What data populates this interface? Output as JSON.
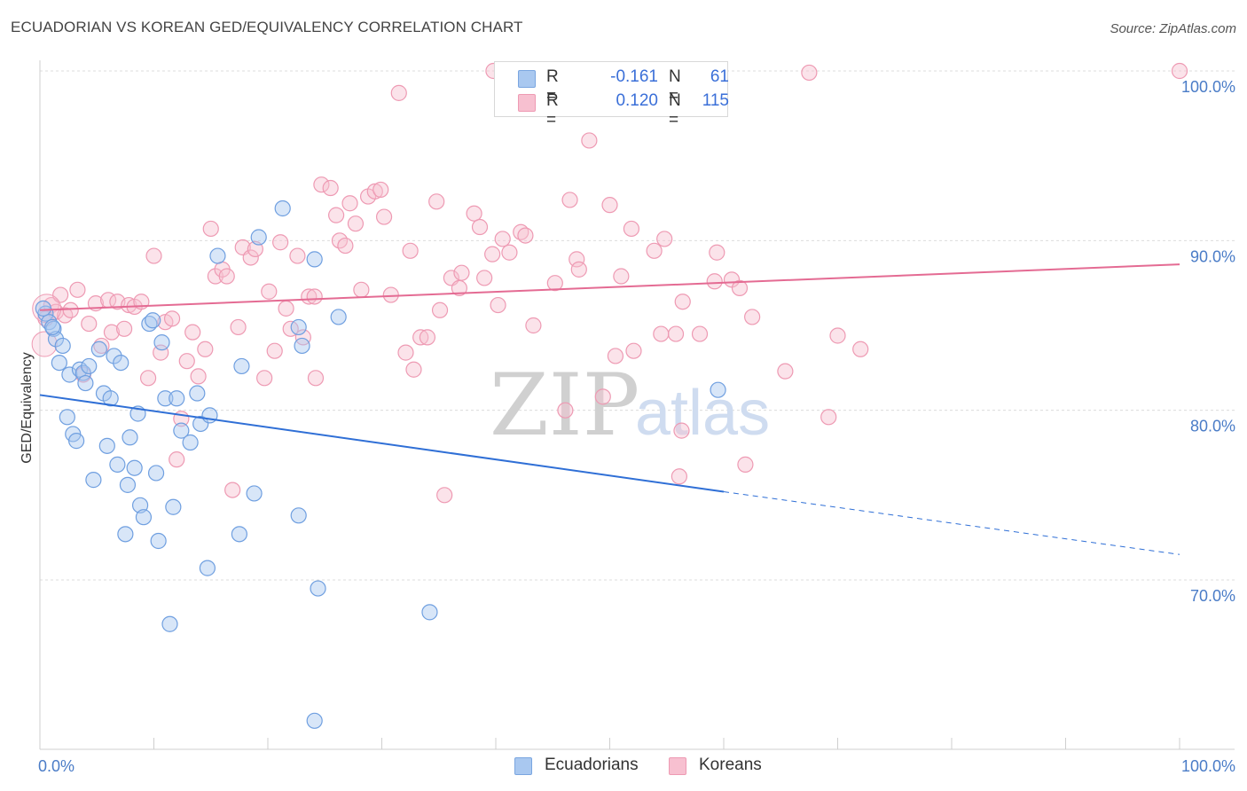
{
  "title": "ECUADORIAN VS KOREAN GED/EQUIVALENCY CORRELATION CHART",
  "source": "Source: ZipAtlas.com",
  "watermark": {
    "zip": "ZIP",
    "atlas": "atlas"
  },
  "legend": {
    "rows": [
      {
        "r_label": "R =",
        "r_value": "-0.161",
        "n_label": "N =",
        "n_value": "61",
        "color": "#a9c8f0",
        "border": "#7aa6e0"
      },
      {
        "r_label": "R =",
        "r_value": "0.120",
        "n_label": "N =",
        "n_value": "115",
        "color": "#f7c0d0",
        "border": "#ee9ab3"
      }
    ]
  },
  "bottom_legend": [
    {
      "label": "Ecuadorians",
      "color": "#a9c8f0",
      "border": "#7aa6e0"
    },
    {
      "label": "Koreans",
      "color": "#f7c0d0",
      "border": "#ee9ab3"
    }
  ],
  "chart_data": {
    "type": "scatter",
    "title": "ECUADORIAN VS KOREAN GED/EQUIVALENCY CORRELATION CHART",
    "xlabel": "",
    "ylabel": "GED/Equivalency",
    "xlim": [
      0,
      100
    ],
    "ylim": [
      60,
      102
    ],
    "x_tick_labels": [
      {
        "value": 0,
        "label": "0.0%"
      },
      {
        "value": 100,
        "label": "100.0%"
      }
    ],
    "y_tick_labels": [
      {
        "value": 100,
        "label": "100.0%"
      },
      {
        "value": 90,
        "label": "90.0%"
      },
      {
        "value": 80,
        "label": "80.0%"
      },
      {
        "value": 70,
        "label": "70.0%"
      }
    ],
    "y_gridlines": [
      100,
      90,
      80,
      70
    ],
    "series": [
      {
        "name": "Ecuadorians",
        "color": "#a9c8f0",
        "stroke": "#6f9fe0",
        "trend": {
          "x0": 0,
          "y0": 80.9,
          "x1": 60,
          "y1": 75.2,
          "dash_to_x": 100,
          "dash_to_y": 71.5,
          "color": "#2f6fd6"
        },
        "points": [
          [
            0.5,
            85.7
          ],
          [
            0.8,
            85.2
          ],
          [
            1.2,
            84.8
          ],
          [
            1.4,
            84.2
          ],
          [
            1.7,
            82.8
          ],
          [
            2.0,
            83.8
          ],
          [
            2.4,
            79.6
          ],
          [
            2.6,
            82.1
          ],
          [
            2.9,
            78.6
          ],
          [
            3.2,
            78.2
          ],
          [
            3.5,
            82.4
          ],
          [
            3.8,
            82.2
          ],
          [
            4.0,
            81.6
          ],
          [
            4.3,
            82.6
          ],
          [
            4.7,
            75.9
          ],
          [
            5.2,
            83.6
          ],
          [
            5.6,
            81.0
          ],
          [
            5.9,
            77.9
          ],
          [
            6.2,
            80.7
          ],
          [
            6.5,
            83.2
          ],
          [
            6.8,
            76.8
          ],
          [
            7.1,
            82.8
          ],
          [
            7.5,
            72.7
          ],
          [
            7.7,
            75.6
          ],
          [
            7.9,
            78.4
          ],
          [
            8.3,
            76.6
          ],
          [
            8.6,
            79.8
          ],
          [
            8.8,
            74.4
          ],
          [
            9.1,
            73.7
          ],
          [
            9.6,
            85.1
          ],
          [
            9.9,
            85.3
          ],
          [
            10.2,
            76.3
          ],
          [
            10.4,
            72.3
          ],
          [
            10.7,
            84.0
          ],
          [
            11.0,
            80.7
          ],
          [
            11.4,
            67.4
          ],
          [
            11.7,
            74.3
          ],
          [
            12.0,
            80.7
          ],
          [
            12.4,
            78.8
          ],
          [
            13.2,
            78.1
          ],
          [
            13.8,
            81.0
          ],
          [
            14.1,
            79.2
          ],
          [
            14.7,
            70.7
          ],
          [
            14.9,
            79.7
          ],
          [
            15.6,
            89.1
          ],
          [
            17.5,
            72.7
          ],
          [
            17.7,
            82.6
          ],
          [
            18.8,
            75.1
          ],
          [
            19.2,
            90.2
          ],
          [
            21.3,
            91.9
          ],
          [
            22.7,
            73.8
          ],
          [
            22.7,
            84.9
          ],
          [
            23.0,
            83.8
          ],
          [
            24.1,
            88.9
          ],
          [
            24.1,
            61.7
          ],
          [
            24.4,
            69.5
          ],
          [
            26.2,
            85.5
          ],
          [
            34.2,
            68.1
          ],
          [
            59.5,
            81.2
          ],
          [
            0.3,
            86.0
          ],
          [
            1.1,
            84.9
          ]
        ]
      },
      {
        "name": "Koreans",
        "color": "#f7c0d0",
        "stroke": "#ee9ab3",
        "trend": {
          "x0": 0,
          "y0": 85.9,
          "x1": 100,
          "y1": 88.6,
          "color": "#e46b93"
        },
        "points": [
          [
            0.5,
            85.4
          ],
          [
            1.0,
            86.2
          ],
          [
            1.4,
            85.8
          ],
          [
            1.8,
            86.8
          ],
          [
            2.2,
            85.6
          ],
          [
            2.7,
            85.9
          ],
          [
            3.3,
            87.1
          ],
          [
            3.8,
            82.1
          ],
          [
            4.3,
            85.1
          ],
          [
            4.9,
            86.3
          ],
          [
            5.4,
            83.8
          ],
          [
            6.0,
            86.5
          ],
          [
            6.3,
            84.6
          ],
          [
            6.8,
            86.4
          ],
          [
            7.4,
            84.8
          ],
          [
            7.8,
            86.2
          ],
          [
            8.3,
            86.1
          ],
          [
            8.9,
            86.4
          ],
          [
            9.5,
            81.9
          ],
          [
            10.0,
            89.1
          ],
          [
            10.6,
            83.4
          ],
          [
            11.0,
            85.2
          ],
          [
            11.6,
            85.4
          ],
          [
            12.0,
            77.1
          ],
          [
            12.4,
            79.5
          ],
          [
            12.9,
            82.9
          ],
          [
            13.4,
            84.6
          ],
          [
            13.9,
            82.0
          ],
          [
            14.5,
            83.6
          ],
          [
            15.0,
            90.7
          ],
          [
            15.4,
            87.9
          ],
          [
            16.0,
            88.3
          ],
          [
            16.4,
            87.9
          ],
          [
            16.9,
            75.3
          ],
          [
            17.4,
            84.9
          ],
          [
            17.8,
            89.6
          ],
          [
            18.5,
            89.0
          ],
          [
            18.9,
            89.5
          ],
          [
            19.7,
            81.9
          ],
          [
            20.1,
            87.0
          ],
          [
            20.6,
            83.5
          ],
          [
            21.1,
            89.9
          ],
          [
            21.6,
            86.0
          ],
          [
            22.0,
            84.8
          ],
          [
            22.6,
            89.1
          ],
          [
            23.1,
            84.3
          ],
          [
            23.6,
            86.7
          ],
          [
            24.1,
            86.7
          ],
          [
            24.2,
            81.9
          ],
          [
            24.7,
            93.3
          ],
          [
            25.5,
            93.1
          ],
          [
            26.0,
            91.5
          ],
          [
            26.3,
            90.0
          ],
          [
            26.8,
            89.7
          ],
          [
            27.2,
            92.2
          ],
          [
            27.7,
            91.0
          ],
          [
            28.2,
            87.1
          ],
          [
            28.8,
            92.6
          ],
          [
            29.4,
            92.9
          ],
          [
            29.9,
            93.0
          ],
          [
            30.2,
            91.4
          ],
          [
            30.8,
            86.8
          ],
          [
            31.5,
            98.7
          ],
          [
            32.1,
            83.4
          ],
          [
            32.5,
            89.4
          ],
          [
            32.8,
            82.4
          ],
          [
            33.4,
            84.3
          ],
          [
            34.0,
            84.3
          ],
          [
            34.8,
            92.3
          ],
          [
            35.1,
            85.9
          ],
          [
            35.5,
            75.0
          ],
          [
            36.1,
            87.8
          ],
          [
            36.8,
            87.2
          ],
          [
            37.0,
            88.1
          ],
          [
            38.1,
            91.6
          ],
          [
            38.6,
            90.8
          ],
          [
            39.0,
            87.8
          ],
          [
            39.7,
            89.2
          ],
          [
            40.2,
            86.2
          ],
          [
            40.6,
            90.1
          ],
          [
            41.2,
            89.3
          ],
          [
            42.2,
            90.5
          ],
          [
            42.6,
            90.3
          ],
          [
            43.3,
            85.0
          ],
          [
            45.2,
            87.5
          ],
          [
            46.1,
            80.0
          ],
          [
            46.5,
            92.4
          ],
          [
            47.1,
            88.9
          ],
          [
            47.3,
            88.3
          ],
          [
            48.2,
            95.9
          ],
          [
            49.4,
            80.8
          ],
          [
            50.0,
            92.1
          ],
          [
            50.5,
            83.2
          ],
          [
            51.0,
            87.9
          ],
          [
            51.9,
            90.7
          ],
          [
            52.1,
            83.5
          ],
          [
            53.9,
            89.4
          ],
          [
            54.5,
            84.5
          ],
          [
            54.8,
            90.1
          ],
          [
            55.8,
            84.5
          ],
          [
            56.3,
            78.8
          ],
          [
            56.1,
            76.1
          ],
          [
            56.4,
            86.4
          ],
          [
            57.9,
            84.5
          ],
          [
            59.2,
            87.6
          ],
          [
            59.4,
            89.3
          ],
          [
            60.7,
            87.7
          ],
          [
            61.4,
            87.2
          ],
          [
            61.9,
            76.8
          ],
          [
            62.5,
            85.5
          ],
          [
            65.4,
            82.3
          ],
          [
            67.5,
            99.9
          ],
          [
            69.2,
            79.6
          ],
          [
            70.0,
            84.4
          ],
          [
            72.0,
            83.6
          ],
          [
            100.0,
            100.0
          ],
          [
            39.8,
            100.0
          ]
        ]
      }
    ]
  }
}
